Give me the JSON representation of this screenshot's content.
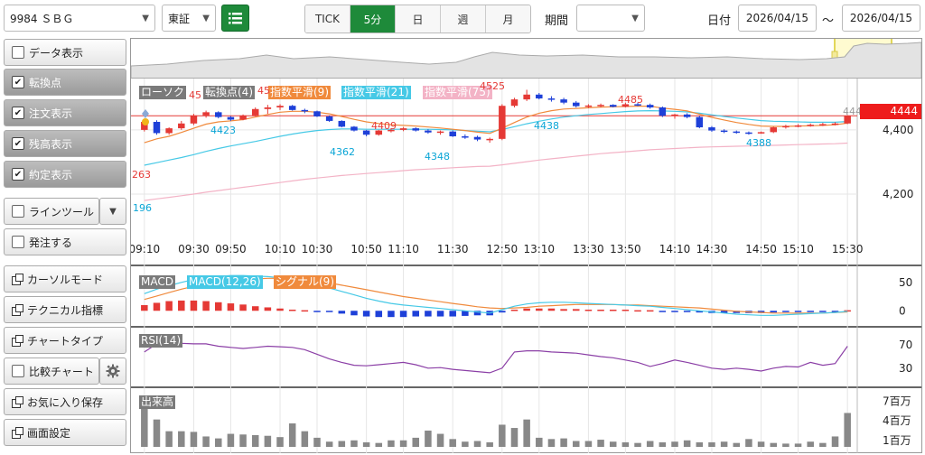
{
  "header": {
    "symbol": "9984 ＳＢＧ",
    "market": "東証",
    "timeframes": [
      "TICK",
      "5分",
      "日",
      "週",
      "月"
    ],
    "active_timeframe": "5分",
    "period_label": "期間",
    "period_value": "",
    "date_label": "日付",
    "date_from": "2026/04/15",
    "date_sep": "～",
    "date_to": "2026/04/15"
  },
  "sidebar": {
    "items": [
      {
        "label": "データ表示",
        "type": "checkbox",
        "checked": false
      },
      {
        "label": "転換点",
        "type": "checkbox",
        "checked": true
      },
      {
        "label": "注文表示",
        "type": "checkbox",
        "checked": true
      },
      {
        "label": "残高表示",
        "type": "checkbox",
        "checked": true
      },
      {
        "label": "約定表示",
        "type": "checkbox",
        "checked": true
      },
      {
        "label": "ラインツール",
        "type": "checkbox",
        "checked": false
      },
      {
        "label": "発注する",
        "type": "checkbox",
        "checked": false
      },
      {
        "label": "カーソルモード",
        "type": "window"
      },
      {
        "label": "テクニカル指標",
        "type": "window"
      },
      {
        "label": "チャートタイプ",
        "type": "window"
      },
      {
        "label": "比較チャート",
        "type": "checkbox",
        "checked": false
      },
      {
        "label": "お気に入り保存",
        "type": "window"
      },
      {
        "label": "画面設定",
        "type": "window"
      }
    ]
  },
  "legend": {
    "candle": "ローソク",
    "turning": "転換点(4)",
    "ema9": "指数平滑(9)",
    "ema21": "指数平滑(21)",
    "ema75": "指数平滑(75)",
    "macd": "MACD",
    "macd_line": "MACD(12,26)",
    "signal": "シグナル(9)",
    "rsi": "RSI(14)",
    "volume": "出来高"
  },
  "colors": {
    "up": "#e53935",
    "down": "#1e40d8",
    "ema9": "#f08a3c",
    "ema21": "#46c9e6",
    "ema75": "#f3b3c6",
    "rsi": "#8b3fa6",
    "volume": "#888888",
    "price_line": "#e53935",
    "accent": "#1e8a3a"
  },
  "annotations": {
    "current_price": "4444",
    "marker_4444": "444",
    "turning_points": [
      {
        "label": "263",
        "color": "#e53935"
      },
      {
        "label": "196",
        "color": "#0aa5d6"
      },
      {
        "label": "45",
        "color": "#e53935"
      },
      {
        "label": "4423",
        "color": "#0aa5d6"
      },
      {
        "label": "45",
        "color": "#e53935"
      },
      {
        "label": "4362",
        "color": "#0aa5d6"
      },
      {
        "label": "4409",
        "color": "#e53935"
      },
      {
        "label": "4348",
        "color": "#0aa5d6"
      },
      {
        "label": "4525",
        "color": "#e53935"
      },
      {
        "label": "4438",
        "color": "#0aa5d6"
      },
      {
        "label": "4485",
        "color": "#e53935"
      },
      {
        "label": "4388",
        "color": "#0aa5d6"
      }
    ]
  },
  "chart_data": [
    {
      "type": "candlestick",
      "x_ticks": [
        "09:10",
        "09:30",
        "09:50",
        "10:10",
        "10:30",
        "10:50",
        "11:10",
        "11:30",
        "12:50",
        "13:10",
        "13:30",
        "13:50",
        "14:10",
        "14:30",
        "14:50",
        "15:10",
        "15:30"
      ],
      "y_ticks": [
        "4,400",
        "4,200"
      ],
      "y_tick_values": [
        4400,
        4200
      ],
      "ylim": [
        4110,
        4560
      ],
      "price_line": 4444,
      "candles": [
        [
          4400,
          4430,
          4395,
          4425
        ],
        [
          4425,
          4430,
          4385,
          4390
        ],
        [
          4390,
          4408,
          4385,
          4405
        ],
        [
          4405,
          4428,
          4400,
          4420
        ],
        [
          4420,
          4450,
          4415,
          4445
        ],
        [
          4445,
          4460,
          4438,
          4455
        ],
        [
          4455,
          4458,
          4436,
          4440
        ],
        [
          4440,
          4443,
          4428,
          4432
        ],
        [
          4432,
          4448,
          4430,
          4445
        ],
        [
          4445,
          4470,
          4442,
          4465
        ],
        [
          4465,
          4478,
          4450,
          4470
        ],
        [
          4470,
          4480,
          4462,
          4475
        ],
        [
          4475,
          4478,
          4460,
          4462
        ],
        [
          4462,
          4466,
          4452,
          4458
        ],
        [
          4458,
          4460,
          4440,
          4442
        ],
        [
          4442,
          4445,
          4425,
          4428
        ],
        [
          4428,
          4430,
          4408,
          4410
        ],
        [
          4410,
          4412,
          4395,
          4398
        ],
        [
          4398,
          4400,
          4380,
          4385
        ],
        [
          4385,
          4400,
          4382,
          4398
        ],
        [
          4398,
          4405,
          4392,
          4400
        ],
        [
          4400,
          4409,
          4396,
          4405
        ],
        [
          4405,
          4408,
          4395,
          4398
        ],
        [
          4398,
          4402,
          4388,
          4392
        ],
        [
          4392,
          4398,
          4385,
          4395
        ],
        [
          4395,
          4398,
          4378,
          4380
        ],
        [
          4380,
          4386,
          4372,
          4378
        ],
        [
          4378,
          4382,
          4365,
          4370
        ],
        [
          4370,
          4376,
          4360,
          4372
        ],
        [
          4372,
          4480,
          4368,
          4475
        ],
        [
          4475,
          4500,
          4470,
          4495
        ],
        [
          4495,
          4525,
          4490,
          4510
        ],
        [
          4510,
          4515,
          4495,
          4498
        ],
        [
          4498,
          4505,
          4488,
          4495
        ],
        [
          4495,
          4500,
          4480,
          4485
        ],
        [
          4485,
          4490,
          4470,
          4474
        ],
        [
          4474,
          4480,
          4468,
          4476
        ],
        [
          4476,
          4482,
          4470,
          4478
        ],
        [
          4478,
          4480,
          4470,
          4472
        ],
        [
          4472,
          4485,
          4470,
          4480
        ],
        [
          4480,
          4485,
          4474,
          4478
        ],
        [
          4478,
          4482,
          4466,
          4470
        ],
        [
          4470,
          4473,
          4440,
          4444
        ],
        [
          4444,
          4450,
          4435,
          4448
        ],
        [
          4448,
          4452,
          4436,
          4440
        ],
        [
          4440,
          4444,
          4405,
          4408
        ],
        [
          4408,
          4412,
          4394,
          4398
        ],
        [
          4398,
          4402,
          4390,
          4395
        ],
        [
          4395,
          4398,
          4388,
          4392
        ],
        [
          4392,
          4395,
          4385,
          4390
        ],
        [
          4390,
          4395,
          4388,
          4393
        ],
        [
          4393,
          4410,
          4390,
          4408
        ],
        [
          4408,
          4416,
          4404,
          4412
        ],
        [
          4412,
          4418,
          4408,
          4414
        ],
        [
          4414,
          4420,
          4410,
          4416
        ],
        [
          4416,
          4422,
          4412,
          4418
        ],
        [
          4418,
          4424,
          4414,
          4420
        ],
        [
          4420,
          4446,
          4418,
          4444
        ]
      ],
      "series": [
        {
          "name": "指数平滑(9)",
          "values": [
            4360,
            4372,
            4380,
            4392,
            4405,
            4418,
            4425,
            4428,
            4432,
            4440,
            4448,
            4455,
            4458,
            4458,
            4455,
            4450,
            4442,
            4433,
            4425,
            4420,
            4416,
            4414,
            4412,
            4409,
            4406,
            4402,
            4398,
            4393,
            4389,
            4405,
            4423,
            4440,
            4452,
            4460,
            4465,
            4467,
            4469,
            4471,
            4472,
            4473,
            4474,
            4474,
            4468,
            4464,
            4459,
            4449,
            4439,
            4431,
            4423,
            4417,
            4412,
            4411,
            4411,
            4412,
            4413,
            4414,
            4416,
            4421
          ]
        },
        {
          "name": "指数平滑(21)",
          "values": [
            4290,
            4298,
            4306,
            4314,
            4323,
            4333,
            4342,
            4350,
            4357,
            4364,
            4372,
            4380,
            4387,
            4393,
            4398,
            4401,
            4403,
            4403,
            4402,
            4402,
            4402,
            4402,
            4402,
            4402,
            4401,
            4400,
            4398,
            4396,
            4394,
            4401,
            4410,
            4419,
            4427,
            4434,
            4440,
            4444,
            4448,
            4451,
            4454,
            4457,
            4459,
            4460,
            4459,
            4458,
            4456,
            4452,
            4447,
            4442,
            4437,
            4433,
            4429,
            4427,
            4426,
            4425,
            4424,
            4424,
            4424,
            4426
          ]
        },
        {
          "name": "指数平滑(75)",
          "values": [
            4180,
            4185,
            4190,
            4195,
            4200,
            4206,
            4211,
            4216,
            4221,
            4226,
            4231,
            4236,
            4241,
            4246,
            4250,
            4254,
            4258,
            4261,
            4264,
            4267,
            4270,
            4273,
            4276,
            4278,
            4280,
            4282,
            4284,
            4286,
            4287,
            4291,
            4296,
            4301,
            4306,
            4310,
            4314,
            4318,
            4322,
            4326,
            4329,
            4332,
            4335,
            4338,
            4340,
            4342,
            4344,
            4346,
            4347,
            4348,
            4349,
            4350,
            4351,
            4352,
            4353,
            4354,
            4355,
            4356,
            4357,
            4359
          ]
        }
      ]
    },
    {
      "type": "bar",
      "name": "MACD",
      "y_ticks": [
        "50",
        "0"
      ],
      "y_tick_values": [
        50,
        0
      ],
      "ylim": [
        -25,
        75
      ],
      "hist": [
        10,
        14,
        17,
        18,
        18,
        17,
        15,
        13,
        11,
        8,
        6,
        4,
        2,
        1,
        -1,
        -2,
        -5,
        -8,
        -10,
        -11,
        -11,
        -11,
        -10,
        -10,
        -10,
        -10,
        -9,
        -8,
        -8,
        -3,
        2,
        4,
        4,
        4,
        3,
        3,
        2,
        2,
        2,
        2,
        1,
        1,
        -1,
        -1,
        -2,
        -3,
        -4,
        -4,
        -4,
        -4,
        -4,
        -3,
        -2,
        -2,
        -2,
        -1,
        -1,
        1
      ],
      "series": [
        {
          "name": "MACD(12,26)",
          "values": [
            30,
            38,
            44,
            50,
            55,
            58,
            60,
            62,
            62,
            61,
            60,
            58,
            55,
            50,
            45,
            40,
            34,
            28,
            22,
            17,
            13,
            10,
            8,
            6,
            4,
            2,
            0,
            -2,
            -4,
            2,
            8,
            12,
            14,
            15,
            15,
            14,
            13,
            12,
            11,
            10,
            9,
            8,
            6,
            4,
            2,
            0,
            -2,
            -4,
            -6,
            -7,
            -8,
            -8,
            -7,
            -6,
            -5,
            -4,
            -3,
            -1
          ]
        },
        {
          "name": "シグナル(9)",
          "values": [
            20,
            26,
            32,
            38,
            43,
            47,
            50,
            53,
            55,
            56,
            57,
            57,
            56,
            54,
            52,
            49,
            45,
            41,
            37,
            33,
            29,
            25,
            22,
            19,
            16,
            13,
            10,
            7,
            5,
            4,
            5,
            6,
            8,
            9,
            10,
            11,
            11,
            11,
            11,
            10,
            10,
            9,
            8,
            7,
            6,
            5,
            3,
            1,
            -1,
            -2,
            -3,
            -4,
            -4,
            -4,
            -4,
            -4,
            -3,
            -2
          ]
        }
      ]
    },
    {
      "type": "line",
      "name": "RSI(14)",
      "y_ticks": [
        "70",
        "30"
      ],
      "y_tick_values": [
        70,
        30
      ],
      "ylim": [
        0,
        100
      ],
      "series": [
        {
          "name": "RSI(14)",
          "values": [
            58,
            72,
            74,
            73,
            72,
            72,
            68,
            66,
            64,
            66,
            68,
            67,
            66,
            62,
            54,
            46,
            40,
            35,
            34,
            36,
            38,
            40,
            36,
            30,
            31,
            28,
            26,
            24,
            22,
            30,
            58,
            60,
            60,
            58,
            57,
            56,
            53,
            50,
            48,
            44,
            40,
            33,
            38,
            44,
            40,
            35,
            30,
            28,
            30,
            28,
            25,
            30,
            33,
            32,
            40,
            35,
            38,
            68
          ]
        }
      ]
    },
    {
      "type": "bar",
      "name": "出来高",
      "y_ticks": [
        "7百万",
        "4百万",
        "1百万"
      ],
      "y_tick_values": [
        7,
        4,
        1
      ],
      "ylim": [
        0,
        9
      ],
      "values": [
        6.8,
        4.2,
        2.4,
        2.4,
        2.3,
        1.6,
        1.3,
        2.0,
        1.9,
        1.8,
        1.7,
        1.5,
        3.6,
        2.4,
        1.4,
        0.8,
        0.9,
        1.0,
        0.7,
        0.6,
        1.0,
        1.0,
        1.4,
        2.5,
        2.0,
        1.2,
        0.8,
        0.9,
        0.7,
        3.4,
        2.9,
        4.2,
        1.4,
        1.2,
        1.3,
        0.9,
        0.9,
        1.1,
        0.8,
        0.7,
        0.6,
        0.9,
        0.7,
        0.8,
        1.0,
        0.7,
        0.7,
        0.8,
        0.6,
        1.2,
        0.8,
        0.6,
        0.5,
        0.5,
        0.8,
        0.6,
        1.6,
        5.2
      ]
    }
  ]
}
